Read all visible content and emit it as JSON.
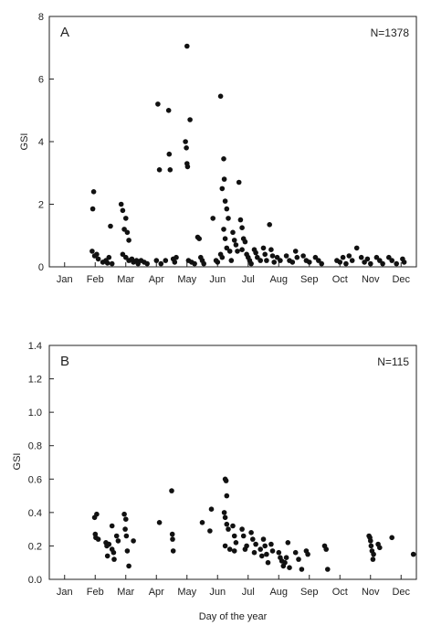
{
  "chart_data": [
    {
      "type": "scatter",
      "panel_label": "A",
      "annotation": "N=1378",
      "title": "",
      "xlabel": "",
      "ylabel": "GSI",
      "ylim": [
        0,
        8
      ],
      "xlim": [
        0,
        12
      ],
      "yticks": [
        0,
        2,
        4,
        6,
        8
      ],
      "xtick_labels": [
        "Jan",
        "Feb",
        "Mar",
        "Apr",
        "May",
        "Jun",
        "Jul",
        "Aug",
        "Sep",
        "Oct",
        "Nov",
        "Dec"
      ],
      "grid": false,
      "x_unit": "month index (0 = Jan)",
      "points": [
        [
          1.45,
          2.4
        ],
        [
          1.42,
          1.85
        ],
        [
          1.4,
          0.5
        ],
        [
          1.48,
          0.35
        ],
        [
          1.55,
          0.4
        ],
        [
          1.6,
          0.25
        ],
        [
          1.75,
          0.15
        ],
        [
          1.85,
          0.2
        ],
        [
          1.9,
          0.12
        ],
        [
          1.95,
          0.3
        ],
        [
          2.0,
          1.3
        ],
        [
          2.05,
          0.1
        ],
        [
          2.35,
          2.0
        ],
        [
          2.4,
          1.8
        ],
        [
          2.5,
          1.55
        ],
        [
          2.45,
          1.2
        ],
        [
          2.55,
          1.1
        ],
        [
          2.6,
          0.85
        ],
        [
          2.4,
          0.4
        ],
        [
          2.5,
          0.3
        ],
        [
          2.6,
          0.2
        ],
        [
          2.7,
          0.25
        ],
        [
          2.75,
          0.15
        ],
        [
          2.85,
          0.2
        ],
        [
          2.9,
          0.1
        ],
        [
          3.0,
          0.2
        ],
        [
          3.1,
          0.15
        ],
        [
          3.2,
          0.1
        ],
        [
          3.55,
          5.2
        ],
        [
          3.6,
          3.1
        ],
        [
          3.5,
          0.2
        ],
        [
          3.65,
          0.1
        ],
        [
          3.8,
          0.2
        ],
        [
          3.9,
          5.0
        ],
        [
          3.92,
          3.6
        ],
        [
          3.95,
          3.1
        ],
        [
          4.05,
          0.25
        ],
        [
          4.1,
          0.15
        ],
        [
          4.15,
          0.3
        ],
        [
          4.5,
          7.05
        ],
        [
          4.45,
          4.0
        ],
        [
          4.48,
          3.8
        ],
        [
          4.5,
          3.3
        ],
        [
          4.52,
          3.2
        ],
        [
          4.6,
          4.7
        ],
        [
          4.55,
          0.2
        ],
        [
          4.65,
          0.15
        ],
        [
          4.75,
          0.1
        ],
        [
          4.85,
          0.95
        ],
        [
          4.9,
          0.9
        ],
        [
          4.95,
          0.3
        ],
        [
          5.0,
          0.2
        ],
        [
          5.05,
          0.1
        ],
        [
          5.35,
          1.55
        ],
        [
          5.45,
          0.2
        ],
        [
          5.5,
          0.15
        ],
        [
          5.6,
          5.45
        ],
        [
          5.7,
          3.45
        ],
        [
          5.72,
          2.8
        ],
        [
          5.65,
          2.5
        ],
        [
          5.75,
          2.1
        ],
        [
          5.8,
          1.85
        ],
        [
          5.85,
          1.55
        ],
        [
          5.7,
          1.2
        ],
        [
          5.75,
          0.9
        ],
        [
          5.8,
          0.6
        ],
        [
          5.6,
          0.4
        ],
        [
          5.65,
          0.3
        ],
        [
          5.9,
          0.5
        ],
        [
          5.95,
          0.2
        ],
        [
          6.0,
          1.1
        ],
        [
          6.05,
          0.85
        ],
        [
          6.1,
          0.7
        ],
        [
          6.15,
          0.5
        ],
        [
          6.2,
          2.7
        ],
        [
          6.25,
          1.5
        ],
        [
          6.3,
          1.25
        ],
        [
          6.35,
          0.9
        ],
        [
          6.4,
          0.8
        ],
        [
          6.3,
          0.55
        ],
        [
          6.45,
          0.4
        ],
        [
          6.5,
          0.3
        ],
        [
          6.55,
          0.2
        ],
        [
          6.6,
          0.1
        ],
        [
          6.7,
          0.55
        ],
        [
          6.75,
          0.45
        ],
        [
          6.8,
          0.3
        ],
        [
          6.9,
          0.2
        ],
        [
          7.0,
          0.6
        ],
        [
          7.05,
          0.4
        ],
        [
          7.1,
          0.2
        ],
        [
          7.2,
          1.35
        ],
        [
          7.25,
          0.55
        ],
        [
          7.3,
          0.35
        ],
        [
          7.35,
          0.15
        ],
        [
          7.45,
          0.3
        ],
        [
          7.55,
          0.2
        ],
        [
          7.75,
          0.35
        ],
        [
          7.85,
          0.2
        ],
        [
          7.95,
          0.15
        ],
        [
          8.05,
          0.5
        ],
        [
          8.1,
          0.3
        ],
        [
          8.3,
          0.35
        ],
        [
          8.4,
          0.2
        ],
        [
          8.5,
          0.15
        ],
        [
          8.7,
          0.3
        ],
        [
          8.8,
          0.2
        ],
        [
          8.9,
          0.1
        ],
        [
          9.4,
          0.2
        ],
        [
          9.5,
          0.15
        ],
        [
          9.6,
          0.3
        ],
        [
          9.7,
          0.1
        ],
        [
          9.8,
          0.35
        ],
        [
          9.9,
          0.2
        ],
        [
          10.05,
          0.6
        ],
        [
          10.2,
          0.3
        ],
        [
          10.3,
          0.15
        ],
        [
          10.4,
          0.25
        ],
        [
          10.5,
          0.1
        ],
        [
          10.7,
          0.3
        ],
        [
          10.8,
          0.2
        ],
        [
          10.9,
          0.1
        ],
        [
          11.1,
          0.3
        ],
        [
          11.2,
          0.2
        ],
        [
          11.35,
          0.1
        ],
        [
          11.55,
          0.25
        ],
        [
          11.6,
          0.15
        ]
      ]
    },
    {
      "type": "scatter",
      "panel_label": "B",
      "annotation": "N=115",
      "title": "",
      "xlabel": "Day of the year",
      "ylabel": "GSI",
      "ylim": [
        0,
        1.4
      ],
      "xlim": [
        0,
        12
      ],
      "yticks": [
        0.0,
        0.2,
        0.4,
        0.6,
        0.8,
        1.0,
        1.2,
        1.4
      ],
      "xtick_labels": [
        "Jan",
        "Feb",
        "Mar",
        "Apr",
        "May",
        "Jun",
        "Jul",
        "Aug",
        "Sep",
        "Oct",
        "Nov",
        "Dec"
      ],
      "grid": false,
      "x_unit": "month index (0 = Jan)",
      "points": [
        [
          1.48,
          0.37
        ],
        [
          1.55,
          0.39
        ],
        [
          1.5,
          0.27
        ],
        [
          1.52,
          0.25
        ],
        [
          1.6,
          0.24
        ],
        [
          1.85,
          0.22
        ],
        [
          1.9,
          0.14
        ],
        [
          1.88,
          0.2
        ],
        [
          1.95,
          0.21
        ],
        [
          2.05,
          0.32
        ],
        [
          2.05,
          0.18
        ],
        [
          2.1,
          0.16
        ],
        [
          2.12,
          0.12
        ],
        [
          2.2,
          0.26
        ],
        [
          2.25,
          0.23
        ],
        [
          2.45,
          0.39
        ],
        [
          2.5,
          0.36
        ],
        [
          2.48,
          0.3
        ],
        [
          2.52,
          0.26
        ],
        [
          2.55,
          0.17
        ],
        [
          2.6,
          0.08
        ],
        [
          2.75,
          0.23
        ],
        [
          3.6,
          0.34
        ],
        [
          4.0,
          0.53
        ],
        [
          4.02,
          0.27
        ],
        [
          4.03,
          0.24
        ],
        [
          4.05,
          0.17
        ],
        [
          5.0,
          0.34
        ],
        [
          5.25,
          0.29
        ],
        [
          5.3,
          0.42
        ],
        [
          5.75,
          0.6
        ],
        [
          5.78,
          0.59
        ],
        [
          5.8,
          0.5
        ],
        [
          5.72,
          0.4
        ],
        [
          5.75,
          0.37
        ],
        [
          5.8,
          0.33
        ],
        [
          5.85,
          0.3
        ],
        [
          5.75,
          0.2
        ],
        [
          5.9,
          0.18
        ],
        [
          6.0,
          0.32
        ],
        [
          6.05,
          0.26
        ],
        [
          6.1,
          0.22
        ],
        [
          6.05,
          0.17
        ],
        [
          6.3,
          0.3
        ],
        [
          6.35,
          0.26
        ],
        [
          6.4,
          0.18
        ],
        [
          6.45,
          0.2
        ],
        [
          6.6,
          0.28
        ],
        [
          6.65,
          0.24
        ],
        [
          6.7,
          0.16
        ],
        [
          6.75,
          0.21
        ],
        [
          6.9,
          0.18
        ],
        [
          6.95,
          0.14
        ],
        [
          7.0,
          0.24
        ],
        [
          7.05,
          0.2
        ],
        [
          7.1,
          0.15
        ],
        [
          7.15,
          0.1
        ],
        [
          7.25,
          0.21
        ],
        [
          7.3,
          0.17
        ],
        [
          7.5,
          0.16
        ],
        [
          7.55,
          0.13
        ],
        [
          7.6,
          0.11
        ],
        [
          7.65,
          0.08
        ],
        [
          7.7,
          0.1
        ],
        [
          7.75,
          0.13
        ],
        [
          7.8,
          0.22
        ],
        [
          7.85,
          0.07
        ],
        [
          8.05,
          0.16
        ],
        [
          8.15,
          0.12
        ],
        [
          8.25,
          0.06
        ],
        [
          8.4,
          0.17
        ],
        [
          8.45,
          0.15
        ],
        [
          9.0,
          0.2
        ],
        [
          9.05,
          0.18
        ],
        [
          9.1,
          0.06
        ],
        [
          10.45,
          0.26
        ],
        [
          10.48,
          0.25
        ],
        [
          10.5,
          0.23
        ],
        [
          10.52,
          0.2
        ],
        [
          10.55,
          0.17
        ],
        [
          10.6,
          0.15
        ],
        [
          10.58,
          0.12
        ],
        [
          10.75,
          0.21
        ],
        [
          10.8,
          0.19
        ],
        [
          11.2,
          0.25
        ],
        [
          11.9,
          0.15
        ]
      ]
    }
  ]
}
